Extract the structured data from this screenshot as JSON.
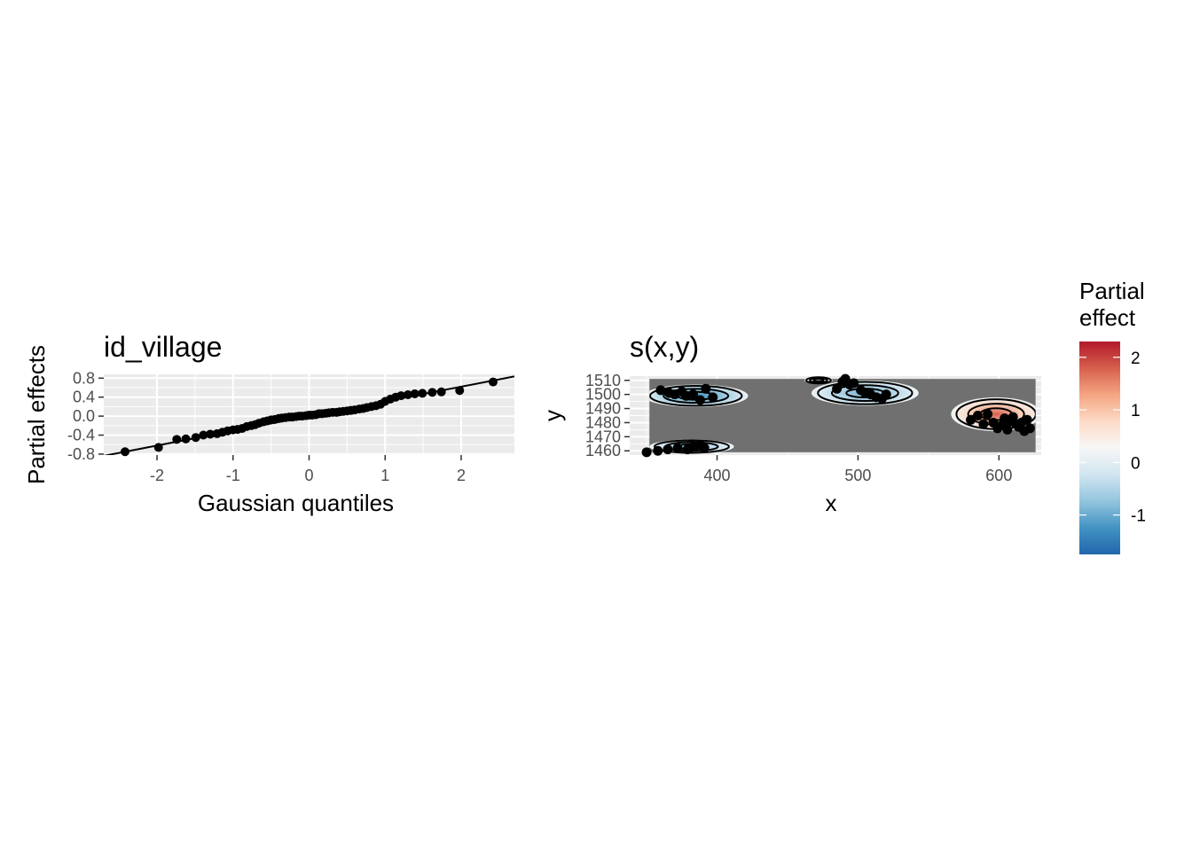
{
  "chart_data": [
    {
      "type": "scatter",
      "title": "id_village",
      "xlabel": "Gaussian quantiles",
      "ylabel": "Partial effects",
      "xlim": [
        -2.7,
        2.7
      ],
      "ylim": [
        -0.82,
        0.88
      ],
      "x_ticks": [
        -2,
        -1,
        0,
        1,
        2
      ],
      "x_tick_labels": [
        "-2",
        "-1",
        "0",
        "1",
        "2"
      ],
      "y_ticks": [
        -0.8,
        -0.4,
        0.0,
        0.4,
        0.8
      ],
      "y_tick_labels": [
        "-0.8",
        "-0.4",
        "0.0",
        "0.4",
        "0.8"
      ],
      "grid": true,
      "reference_line": {
        "slope": 0.31,
        "intercept": 0.0
      },
      "points": {
        "x": [
          -2.42,
          -1.98,
          -1.74,
          -1.62,
          -1.49,
          -1.39,
          -1.3,
          -1.21,
          -1.14,
          -1.07,
          -1.0,
          -0.94,
          -0.88,
          -0.82,
          -0.76,
          -0.71,
          -0.66,
          -0.6,
          -0.55,
          -0.5,
          -0.45,
          -0.4,
          -0.36,
          -0.31,
          -0.26,
          -0.22,
          -0.17,
          -0.13,
          -0.09,
          -0.04,
          0.0,
          0.04,
          0.09,
          0.13,
          0.17,
          0.22,
          0.26,
          0.31,
          0.36,
          0.4,
          0.45,
          0.5,
          0.55,
          0.6,
          0.66,
          0.71,
          0.76,
          0.82,
          0.88,
          0.94,
          1.0,
          1.07,
          1.14,
          1.21,
          1.3,
          1.39,
          1.49,
          1.62,
          1.74,
          1.98,
          2.42
        ],
        "y": [
          -0.75,
          -0.66,
          -0.49,
          -0.48,
          -0.45,
          -0.4,
          -0.38,
          -0.37,
          -0.34,
          -0.31,
          -0.29,
          -0.28,
          -0.26,
          -0.22,
          -0.2,
          -0.18,
          -0.15,
          -0.12,
          -0.1,
          -0.08,
          -0.07,
          -0.05,
          -0.04,
          -0.03,
          -0.02,
          -0.02,
          -0.01,
          0.0,
          0.0,
          0.01,
          0.02,
          0.02,
          0.03,
          0.05,
          0.05,
          0.06,
          0.07,
          0.08,
          0.08,
          0.09,
          0.1,
          0.11,
          0.12,
          0.13,
          0.15,
          0.16,
          0.18,
          0.2,
          0.22,
          0.25,
          0.31,
          0.36,
          0.4,
          0.43,
          0.45,
          0.47,
          0.48,
          0.5,
          0.51,
          0.54,
          0.72
        ]
      }
    },
    {
      "type": "heatmap",
      "title": "s(x,y)",
      "xlabel": "x",
      "ylabel": "y",
      "xlim": [
        338,
        630
      ],
      "ylim": [
        1457,
        1513
      ],
      "x_ticks": [
        400,
        500,
        600
      ],
      "x_tick_labels": [
        "400",
        "500",
        "600"
      ],
      "y_ticks": [
        1460,
        1470,
        1480,
        1490,
        1500,
        1510
      ],
      "y_tick_labels": [
        "1460",
        "1470",
        "1480",
        "1490",
        "1500",
        "1510"
      ],
      "grid": true,
      "background_region": {
        "x": [
          352,
          626
        ],
        "y": [
          1459,
          1511
        ],
        "color": "#707070"
      },
      "surfaces": [
        {
          "center": [
            385,
            1499
          ],
          "radius": [
            37,
            8
          ],
          "value": -1.3
        },
        {
          "center": [
            382,
            1463
          ],
          "radius": [
            30,
            5
          ],
          "value": -0.7
        },
        {
          "center": [
            505,
            1501
          ],
          "radius": [
            38,
            9
          ],
          "value": -0.9
        },
        {
          "center": [
            598,
            1486
          ],
          "radius": [
            32,
            12
          ],
          "value": 1.8
        },
        {
          "center": [
            472,
            1510
          ],
          "radius": [
            10,
            2.5
          ],
          "value": 0.8
        }
      ],
      "points": {
        "x": [
          360,
          366,
          370,
          375,
          378,
          383,
          388,
          392,
          397,
          350,
          358,
          365,
          372,
          379,
          384,
          388,
          391,
          485,
          489,
          491,
          494,
          497,
          502,
          505,
          509,
          513,
          517,
          520,
          580,
          585,
          589,
          592,
          596,
          599,
          602,
          604,
          606,
          608,
          610,
          612,
          614,
          616,
          618,
          620,
          622
        ],
        "y": [
          1503,
          1501,
          1500,
          1502,
          1499,
          1500,
          1496,
          1504,
          1498,
          1459,
          1460,
          1461,
          1462,
          1461,
          1463,
          1464,
          1462,
          1504,
          1509,
          1511,
          1507,
          1508,
          1503,
          1501,
          1500,
          1498,
          1497,
          1500,
          1482,
          1485,
          1479,
          1486,
          1480,
          1476,
          1478,
          1483,
          1475,
          1481,
          1484,
          1479,
          1477,
          1480,
          1474,
          1482,
          1476
        ]
      },
      "legend": {
        "title_lines": [
          "Partial",
          "effect"
        ],
        "ticks": [
          2,
          1,
          0,
          -1
        ],
        "tick_labels": [
          "2",
          "1",
          "0",
          "-1"
        ],
        "range": [
          -1.75,
          2.3
        ],
        "colors": [
          "#2166ac",
          "#4393c3",
          "#92c5de",
          "#d1e5f0",
          "#f7f7f7",
          "#fddbc7",
          "#f4a582",
          "#d6604d",
          "#b2182b"
        ],
        "placement": "right"
      }
    }
  ]
}
